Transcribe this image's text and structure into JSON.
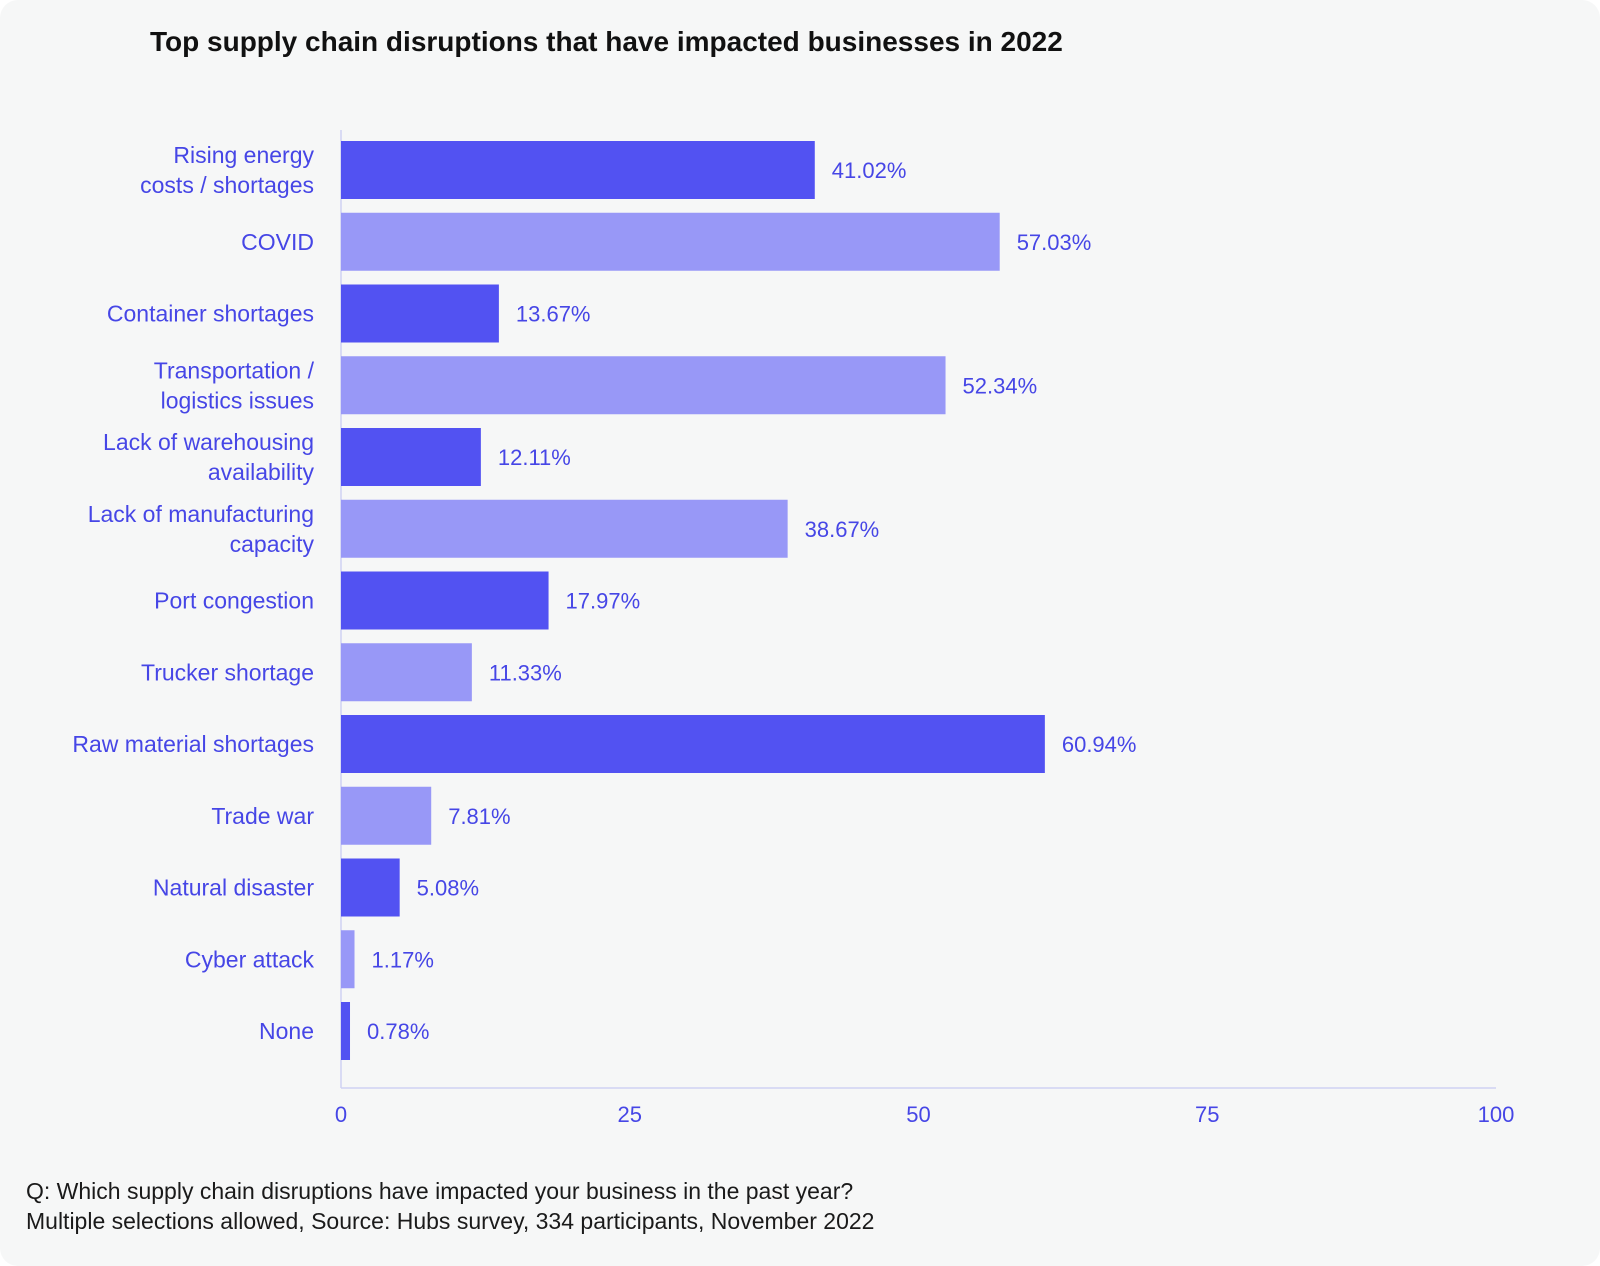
{
  "chart_data": {
    "type": "bar",
    "orientation": "horizontal",
    "title": "Top supply chain disruptions that have impacted businesses in 2022",
    "categories": [
      [
        "Rising energy",
        "costs / shortages"
      ],
      [
        "COVID"
      ],
      [
        "Container shortages"
      ],
      [
        "Transportation /",
        "logistics issues"
      ],
      [
        "Lack of warehousing",
        "availability"
      ],
      [
        "Lack of manufacturing",
        "capacity"
      ],
      [
        "Port congestion"
      ],
      [
        "Trucker shortage"
      ],
      [
        "Raw material shortages"
      ],
      [
        "Trade war"
      ],
      [
        "Natural disaster"
      ],
      [
        "Cyber attack"
      ],
      [
        "None"
      ]
    ],
    "values": [
      41.02,
      57.03,
      13.67,
      52.34,
      12.11,
      38.67,
      17.97,
      11.33,
      60.94,
      7.81,
      5.08,
      1.17,
      0.78
    ],
    "value_labels": [
      "41.02%",
      "57.03%",
      "13.67%",
      "52.34%",
      "12.11%",
      "38.67%",
      "17.97%",
      "11.33%",
      "60.94%",
      "7.81%",
      "5.08%",
      "1.17%",
      "0.78%"
    ],
    "xlim": [
      0,
      100
    ],
    "xticks": [
      0,
      25,
      50,
      75,
      100
    ],
    "xlabel": "",
    "ylabel": "",
    "grid": false,
    "colors": {
      "dark": "#5252f2",
      "light": "#9898f7",
      "text": "#4646e6",
      "axis": "#cfd2f3"
    }
  },
  "caption": {
    "line1": "Q: Which supply chain disruptions have impacted your business in the past year?",
    "line2": "Multiple selections allowed, Source: Hubs survey, 334 participants, November 2022"
  }
}
